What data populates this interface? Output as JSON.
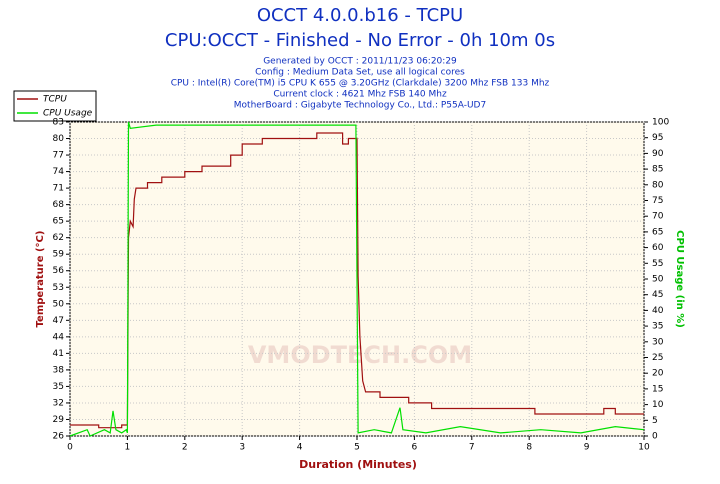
{
  "chart_data": {
    "type": "line",
    "title": "OCCT 4.0.0.b16 - TCPU",
    "subtitle": "CPU:OCCT - Finished - No Error - 0h 10m 0s",
    "info": [
      "Generated by OCCT : 2011/11/23 06:20:29",
      "Config : Medium Data Set, use all logical cores",
      "CPU : Intel(R) Core(TM) i5 CPU K 655 @ 3.20GHz (Clarkdale) 3200 Mhz FSB 133 Mhz",
      "Current clock : 4621 Mhz FSB 140 Mhz",
      "MotherBoard : Gigabyte Technology Co., Ltd.: P55A-UD7"
    ],
    "watermark": "VMODTECH.COM",
    "x_label": "Duration (Minutes)",
    "y_label": "Temperature (°C)",
    "y2_label": "CPU Usage (in %)",
    "xlim": [
      0,
      10
    ],
    "xticks": [
      0,
      1,
      2,
      3,
      4,
      5,
      6,
      7,
      8,
      9,
      10
    ],
    "ylim": [
      26,
      83
    ],
    "yticks": [
      26,
      29,
      32,
      35,
      38,
      41,
      44,
      47,
      50,
      53,
      56,
      59,
      62,
      65,
      68,
      71,
      74,
      77,
      80,
      83
    ],
    "y2lim": [
      0,
      100
    ],
    "y2ticks": [
      0,
      5,
      10,
      15,
      20,
      25,
      30,
      35,
      40,
      45,
      50,
      55,
      60,
      65,
      70,
      75,
      80,
      85,
      90,
      95,
      100
    ],
    "grid": true,
    "series": [
      {
        "name": "TCPU",
        "color": "#a01010",
        "x": [
          0,
          0.5,
          0.5,
          0.9,
          0.9,
          1.0,
          1.02,
          1.05,
          1.1,
          1.12,
          1.15,
          1.35,
          1.35,
          1.6,
          1.6,
          2.0,
          2.0,
          2.3,
          2.3,
          2.8,
          2.8,
          3.0,
          3.0,
          3.35,
          3.35,
          4.3,
          4.3,
          4.75,
          4.75,
          4.85,
          4.85,
          5.0,
          5.02,
          5.05,
          5.1,
          5.15,
          5.4,
          5.4,
          5.9,
          5.9,
          6.3,
          6.3,
          8.1,
          8.1,
          9.3,
          9.3,
          9.5,
          9.5,
          10
        ],
        "values": [
          28,
          28,
          27.5,
          27.5,
          28,
          28,
          62,
          65,
          64,
          69,
          71,
          71,
          72,
          72,
          73,
          73,
          74,
          74,
          75,
          75,
          77,
          77,
          79,
          79,
          80,
          80,
          81,
          81,
          79,
          79,
          80,
          80,
          55,
          44,
          36,
          34,
          34,
          33,
          33,
          32,
          32,
          31,
          31,
          30,
          30,
          31,
          31,
          30,
          30
        ]
      },
      {
        "name": "CPU Usage",
        "color": "#00e000",
        "axis": "y2",
        "x": [
          0,
          0.3,
          0.35,
          0.6,
          0.7,
          0.75,
          0.8,
          0.9,
          0.98,
          1.0,
          1.02,
          1.05,
          1.5,
          2,
          3,
          4,
          4.98,
          5.0,
          5.02,
          5.3,
          5.6,
          5.75,
          5.8,
          6.2,
          6.8,
          7.5,
          8.2,
          8.9,
          9.5,
          10
        ],
        "values": [
          0,
          2,
          0,
          2,
          1,
          8,
          2,
          1,
          2,
          1,
          100,
          98,
          99,
          99,
          99,
          99,
          99,
          50,
          1,
          2,
          1,
          9,
          2,
          1,
          3,
          1,
          2,
          1,
          3,
          2
        ]
      }
    ]
  }
}
